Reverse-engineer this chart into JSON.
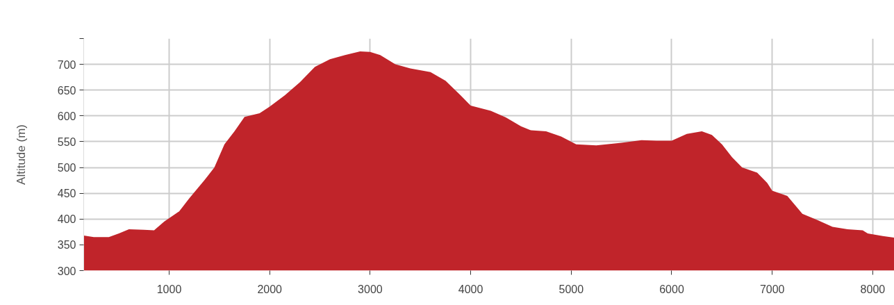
{
  "chart_data": {
    "type": "area",
    "ylabel": "Altitude (m)",
    "xlim": [
      150,
      8215
    ],
    "ylim": [
      300,
      750
    ],
    "xticks": [
      1000,
      2000,
      3000,
      4000,
      5000,
      6000,
      7000,
      8000
    ],
    "yticks": [
      300,
      350,
      400,
      450,
      500,
      550,
      600,
      650,
      700,
      {
        "value": 750,
        "label": null
      }
    ],
    "grid": true,
    "series": [
      {
        "color": "#c0242a",
        "x": [
          150,
          250,
          400,
          500,
          600,
          750,
          850,
          950,
          1100,
          1200,
          1350,
          1450,
          1550,
          1650,
          1750,
          1900,
          2000,
          2150,
          2300,
          2450,
          2600,
          2750,
          2900,
          3000,
          3100,
          3250,
          3400,
          3600,
          3750,
          3900,
          4000,
          4200,
          4350,
          4500,
          4600,
          4750,
          4900,
          5050,
          5250,
          5500,
          5700,
          5850,
          6000,
          6150,
          6300,
          6400,
          6500,
          6600,
          6700,
          6850,
          6950,
          7000,
          7150,
          7300,
          7450,
          7600,
          7750,
          7900,
          7950,
          8100,
          8215
        ],
        "values": [
          368,
          365,
          365,
          372,
          380,
          379,
          378,
          395,
          415,
          440,
          475,
          500,
          545,
          570,
          598,
          605,
          618,
          640,
          665,
          695,
          710,
          718,
          725,
          724,
          718,
          700,
          692,
          685,
          668,
          640,
          620,
          610,
          597,
          580,
          572,
          570,
          560,
          545,
          543,
          548,
          553,
          552,
          552,
          565,
          570,
          563,
          545,
          520,
          500,
          490,
          470,
          455,
          445,
          410,
          398,
          385,
          380,
          378,
          372,
          367,
          364
        ]
      }
    ]
  }
}
